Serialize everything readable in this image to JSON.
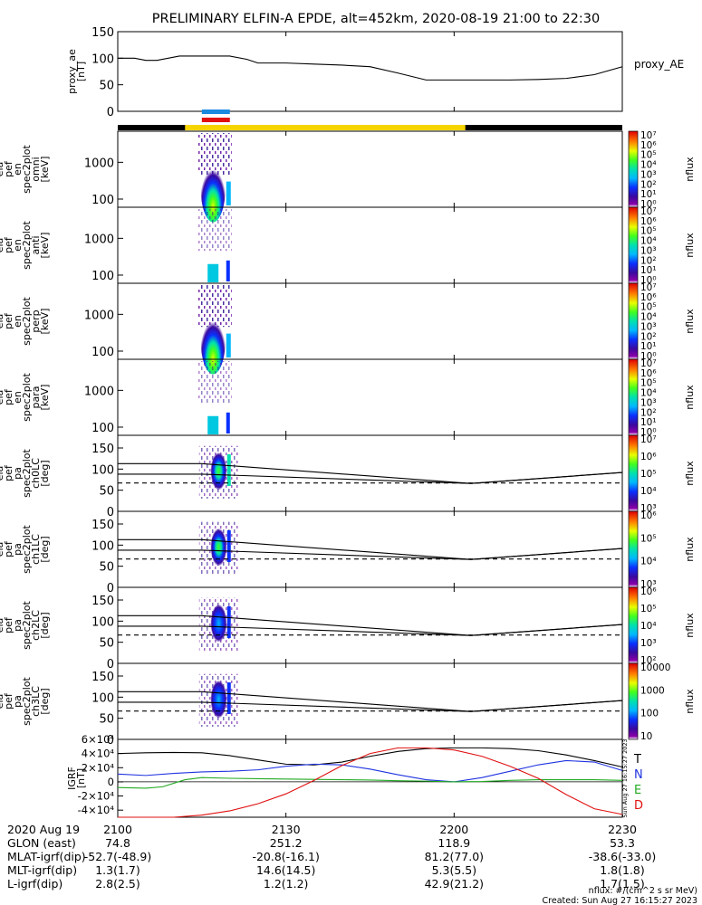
{
  "chart_data": {
    "type": "line",
    "title": "PRELIMINARY ELFIN-A EPDE, alt=452km, 2020-08-19 21:00 to 22:30",
    "x_range": [
      "21:00",
      "22:30"
    ],
    "x_ticks": [
      "2100",
      "2130",
      "2200",
      "2230"
    ],
    "panels": [
      {
        "id": "proxy_ae",
        "ylabel": [
          "proxy_ae",
          "[nT]"
        ],
        "ylim": [
          0,
          150
        ],
        "yticks": [
          "0",
          "50",
          "100",
          "150"
        ],
        "legend": "proxy_AE",
        "series": [
          {
            "name": "proxy_AE",
            "color": "#000000",
            "x": [
              "21:00",
              "21:03",
              "21:05",
              "21:07",
              "21:11",
              "21:15",
              "21:20",
              "21:23",
              "21:25",
              "21:30",
              "21:35",
              "21:40",
              "21:45",
              "21:50",
              "21:55",
              "22:00",
              "22:05",
              "22:10",
              "22:15",
              "22:20",
              "22:25",
              "22:30"
            ],
            "y": [
              100,
              100,
              96,
              96,
              104,
              104,
              104,
              98,
              91,
              91,
              89,
              87,
              84,
              72,
              59,
              59,
              59,
              59,
              60,
              62,
              69,
              84
            ]
          }
        ]
      },
      {
        "id": "omni",
        "ylabel": [
          "ela",
          "pef",
          "en",
          "spec2plot",
          "omni",
          "[keV]"
        ],
        "ylog": true,
        "yticks": [
          "100",
          "1000"
        ],
        "cbar": [
          "10⁰",
          "10¹",
          "10²",
          "10³",
          "10⁴",
          "10⁵",
          "10⁶",
          "10⁷"
        ],
        "cbar_label": "nflux"
      },
      {
        "id": "anti",
        "ylabel": [
          "ela",
          "pef",
          "en",
          "spec2plot",
          "anti",
          "[keV]"
        ],
        "ylog": true,
        "yticks": [
          "100",
          "1000"
        ],
        "cbar": [
          "10⁰",
          "10¹",
          "10²",
          "10³",
          "10⁴",
          "10⁵",
          "10⁶",
          "10⁷"
        ],
        "cbar_label": "nflux"
      },
      {
        "id": "perp",
        "ylabel": [
          "ela",
          "pef",
          "en",
          "spec2plot",
          "perp",
          "[keV]"
        ],
        "ylog": true,
        "yticks": [
          "100",
          "1000"
        ],
        "cbar": [
          "10⁰",
          "10¹",
          "10²",
          "10³",
          "10⁴",
          "10⁵",
          "10⁶",
          "10⁷"
        ],
        "cbar_label": "nflux"
      },
      {
        "id": "para",
        "ylabel": [
          "ela",
          "pef",
          "en",
          "spec2plot",
          "para",
          "[keV]"
        ],
        "ylog": true,
        "yticks": [
          "100",
          "1000"
        ],
        "cbar": [
          "10⁰",
          "10¹",
          "10²",
          "10³",
          "10⁴",
          "10⁵",
          "10⁶",
          "10⁷"
        ],
        "cbar_label": "nflux"
      },
      {
        "id": "ch0LC",
        "ylabel": [
          "ela",
          "pef",
          "pa",
          "spec2plot",
          "ch0LC",
          "[deg]"
        ],
        "ylim": [
          0,
          180
        ],
        "yticks": [
          "0",
          "50",
          "100",
          "150"
        ],
        "cbar": [
          "10³",
          "10⁴",
          "10⁵",
          "10⁶",
          "10⁷"
        ],
        "cbar_label": "nflux"
      },
      {
        "id": "ch1LC",
        "ylabel": [
          "ela",
          "pef",
          "pa",
          "spec2plot",
          "ch1LC",
          "[deg]"
        ],
        "ylim": [
          0,
          180
        ],
        "yticks": [
          "0",
          "50",
          "100",
          "150"
        ],
        "cbar": [
          "10³",
          "10⁴",
          "10⁵",
          "10⁶"
        ],
        "cbar_label": "nflux"
      },
      {
        "id": "ch2LC",
        "ylabel": [
          "ela",
          "pef",
          "pa",
          "spec2plot",
          "ch2LC",
          "[deg]"
        ],
        "ylim": [
          0,
          180
        ],
        "yticks": [
          "0",
          "50",
          "100",
          "150"
        ],
        "cbar": [
          "10²",
          "10³",
          "10⁴",
          "10⁵",
          "10⁶"
        ],
        "cbar_label": "nflux"
      },
      {
        "id": "ch3LC",
        "ylabel": [
          "ela",
          "pef",
          "pa",
          "spec2plot",
          "ch3LC",
          "[deg]"
        ],
        "ylim": [
          0,
          180
        ],
        "yticks": [
          "0",
          "50",
          "100",
          "150"
        ],
        "cbar": [
          "10",
          "100",
          "1000",
          "10000"
        ],
        "cbar_label": "nflux"
      },
      {
        "id": "igrf",
        "ylabel": [
          "IGRF",
          "[nT]"
        ],
        "ylim": [
          -50000,
          60000
        ],
        "yticks": [
          "-4×10⁴",
          "-2×10⁴",
          "0",
          "2×10⁴",
          "4×10⁴",
          "6×10⁴"
        ],
        "legend": [
          "T",
          "N",
          "E",
          "D"
        ],
        "legend_colors": [
          "#000000",
          "#1f33e0",
          "#22aa22",
          "#e01010"
        ],
        "series": [
          {
            "name": "T",
            "color": "#000000",
            "x": [
              "21:00",
              "21:05",
              "21:10",
              "21:15",
              "21:20",
              "21:25",
              "21:30",
              "21:35",
              "21:40",
              "21:45",
              "21:50",
              "21:55",
              "22:00",
              "22:05",
              "22:10",
              "22:15",
              "22:20",
              "22:25",
              "22:30"
            ],
            "y": [
              40000,
              41000,
              41500,
              41000,
              37000,
              31000,
              25000,
              24000,
              28000,
              36000,
              43000,
              47000,
              48000,
              48000,
              47000,
              44000,
              38000,
              30000,
              21000
            ]
          },
          {
            "name": "N",
            "color": "#1f33e0",
            "x": [
              "21:00",
              "21:05",
              "21:10",
              "21:15",
              "21:20",
              "21:25",
              "21:30",
              "21:35",
              "21:40",
              "21:45",
              "21:50",
              "21:55",
              "22:00",
              "22:05",
              "22:10",
              "22:15",
              "22:20",
              "22:25",
              "22:30"
            ],
            "y": [
              11000,
              9000,
              12000,
              14000,
              15000,
              17000,
              22000,
              25000,
              24000,
              18000,
              10000,
              3000,
              0,
              6000,
              15000,
              24000,
              30000,
              28000,
              16000
            ]
          },
          {
            "name": "E",
            "color": "#22aa22",
            "x": [
              "21:00",
              "21:05",
              "21:08",
              "21:12",
              "21:15",
              "21:20",
              "21:25",
              "21:30",
              "21:35",
              "21:40",
              "21:45",
              "21:50",
              "21:55",
              "22:00",
              "22:05",
              "22:10",
              "22:15",
              "22:20",
              "22:25",
              "22:30"
            ],
            "y": [
              -8000,
              -9000,
              -7000,
              3000,
              6000,
              5000,
              4500,
              4000,
              3500,
              3000,
              2500,
              1500,
              1000,
              0,
              500,
              2000,
              3000,
              3000,
              3000,
              2000
            ]
          },
          {
            "name": "D",
            "color": "#e01010",
            "x": [
              "21:00",
              "21:05",
              "21:10",
              "21:15",
              "21:20",
              "21:25",
              "21:30",
              "21:35",
              "21:40",
              "21:45",
              "21:50",
              "21:55",
              "22:00",
              "22:05",
              "22:10",
              "22:15",
              "22:20",
              "22:25",
              "22:30"
            ],
            "y": [
              -50000,
              -50000,
              -50000,
              -47000,
              -41000,
              -31000,
              -17000,
              2000,
              23000,
              40000,
              48000,
              48000,
              45000,
              36000,
              22000,
              5000,
              -18000,
              -38000,
              -46000
            ]
          }
        ]
      }
    ],
    "pitch_angle_lines": {
      "solid_upper": {
        "x": [
          "21:00",
          "21:15",
          "22:03",
          "22:30"
        ],
        "y": [
          113,
          113,
          66,
          92
        ]
      },
      "solid_lower": {
        "x": [
          "21:00",
          "21:15",
          "22:03",
          "22:30"
        ],
        "y": [
          88,
          88,
          66,
          92
        ]
      },
      "dashed": {
        "x": [
          "21:00",
          "22:30"
        ],
        "y": [
          67,
          67
        ]
      }
    },
    "bottom_labels": {
      "rows": [
        {
          "label": "2020 Aug 19",
          "values": [
            "2100",
            "2130",
            "2200",
            "2230"
          ]
        },
        {
          "label": "GLON (east)",
          "values": [
            "74.8",
            "251.2",
            "118.9",
            "53.3"
          ]
        },
        {
          "label": "MLAT-igrf(dip)",
          "values": [
            "-52.7(-48.9)",
            "-20.8(-16.1)",
            "81.2(77.0)",
            "-38.6(-33.0)"
          ]
        },
        {
          "label": "MLT-igrf(dip)",
          "values": [
            "1.3(1.7)",
            "14.6(14.5)",
            "5.3(5.5)",
            "1.8(1.8)"
          ]
        },
        {
          "label": "L-igrf(dip)",
          "values": [
            "2.8(2.5)",
            "1.2(1.2)",
            "42.9(21.2)",
            "1.7(1.5)"
          ]
        }
      ]
    },
    "footnotes": [
      "nflux: #/(cm^2 s sr MeV)",
      "Created: Sun Aug 27 16:15:27 2023"
    ],
    "side_stamp": "Sun Aug 27 16:15:27 2023"
  }
}
